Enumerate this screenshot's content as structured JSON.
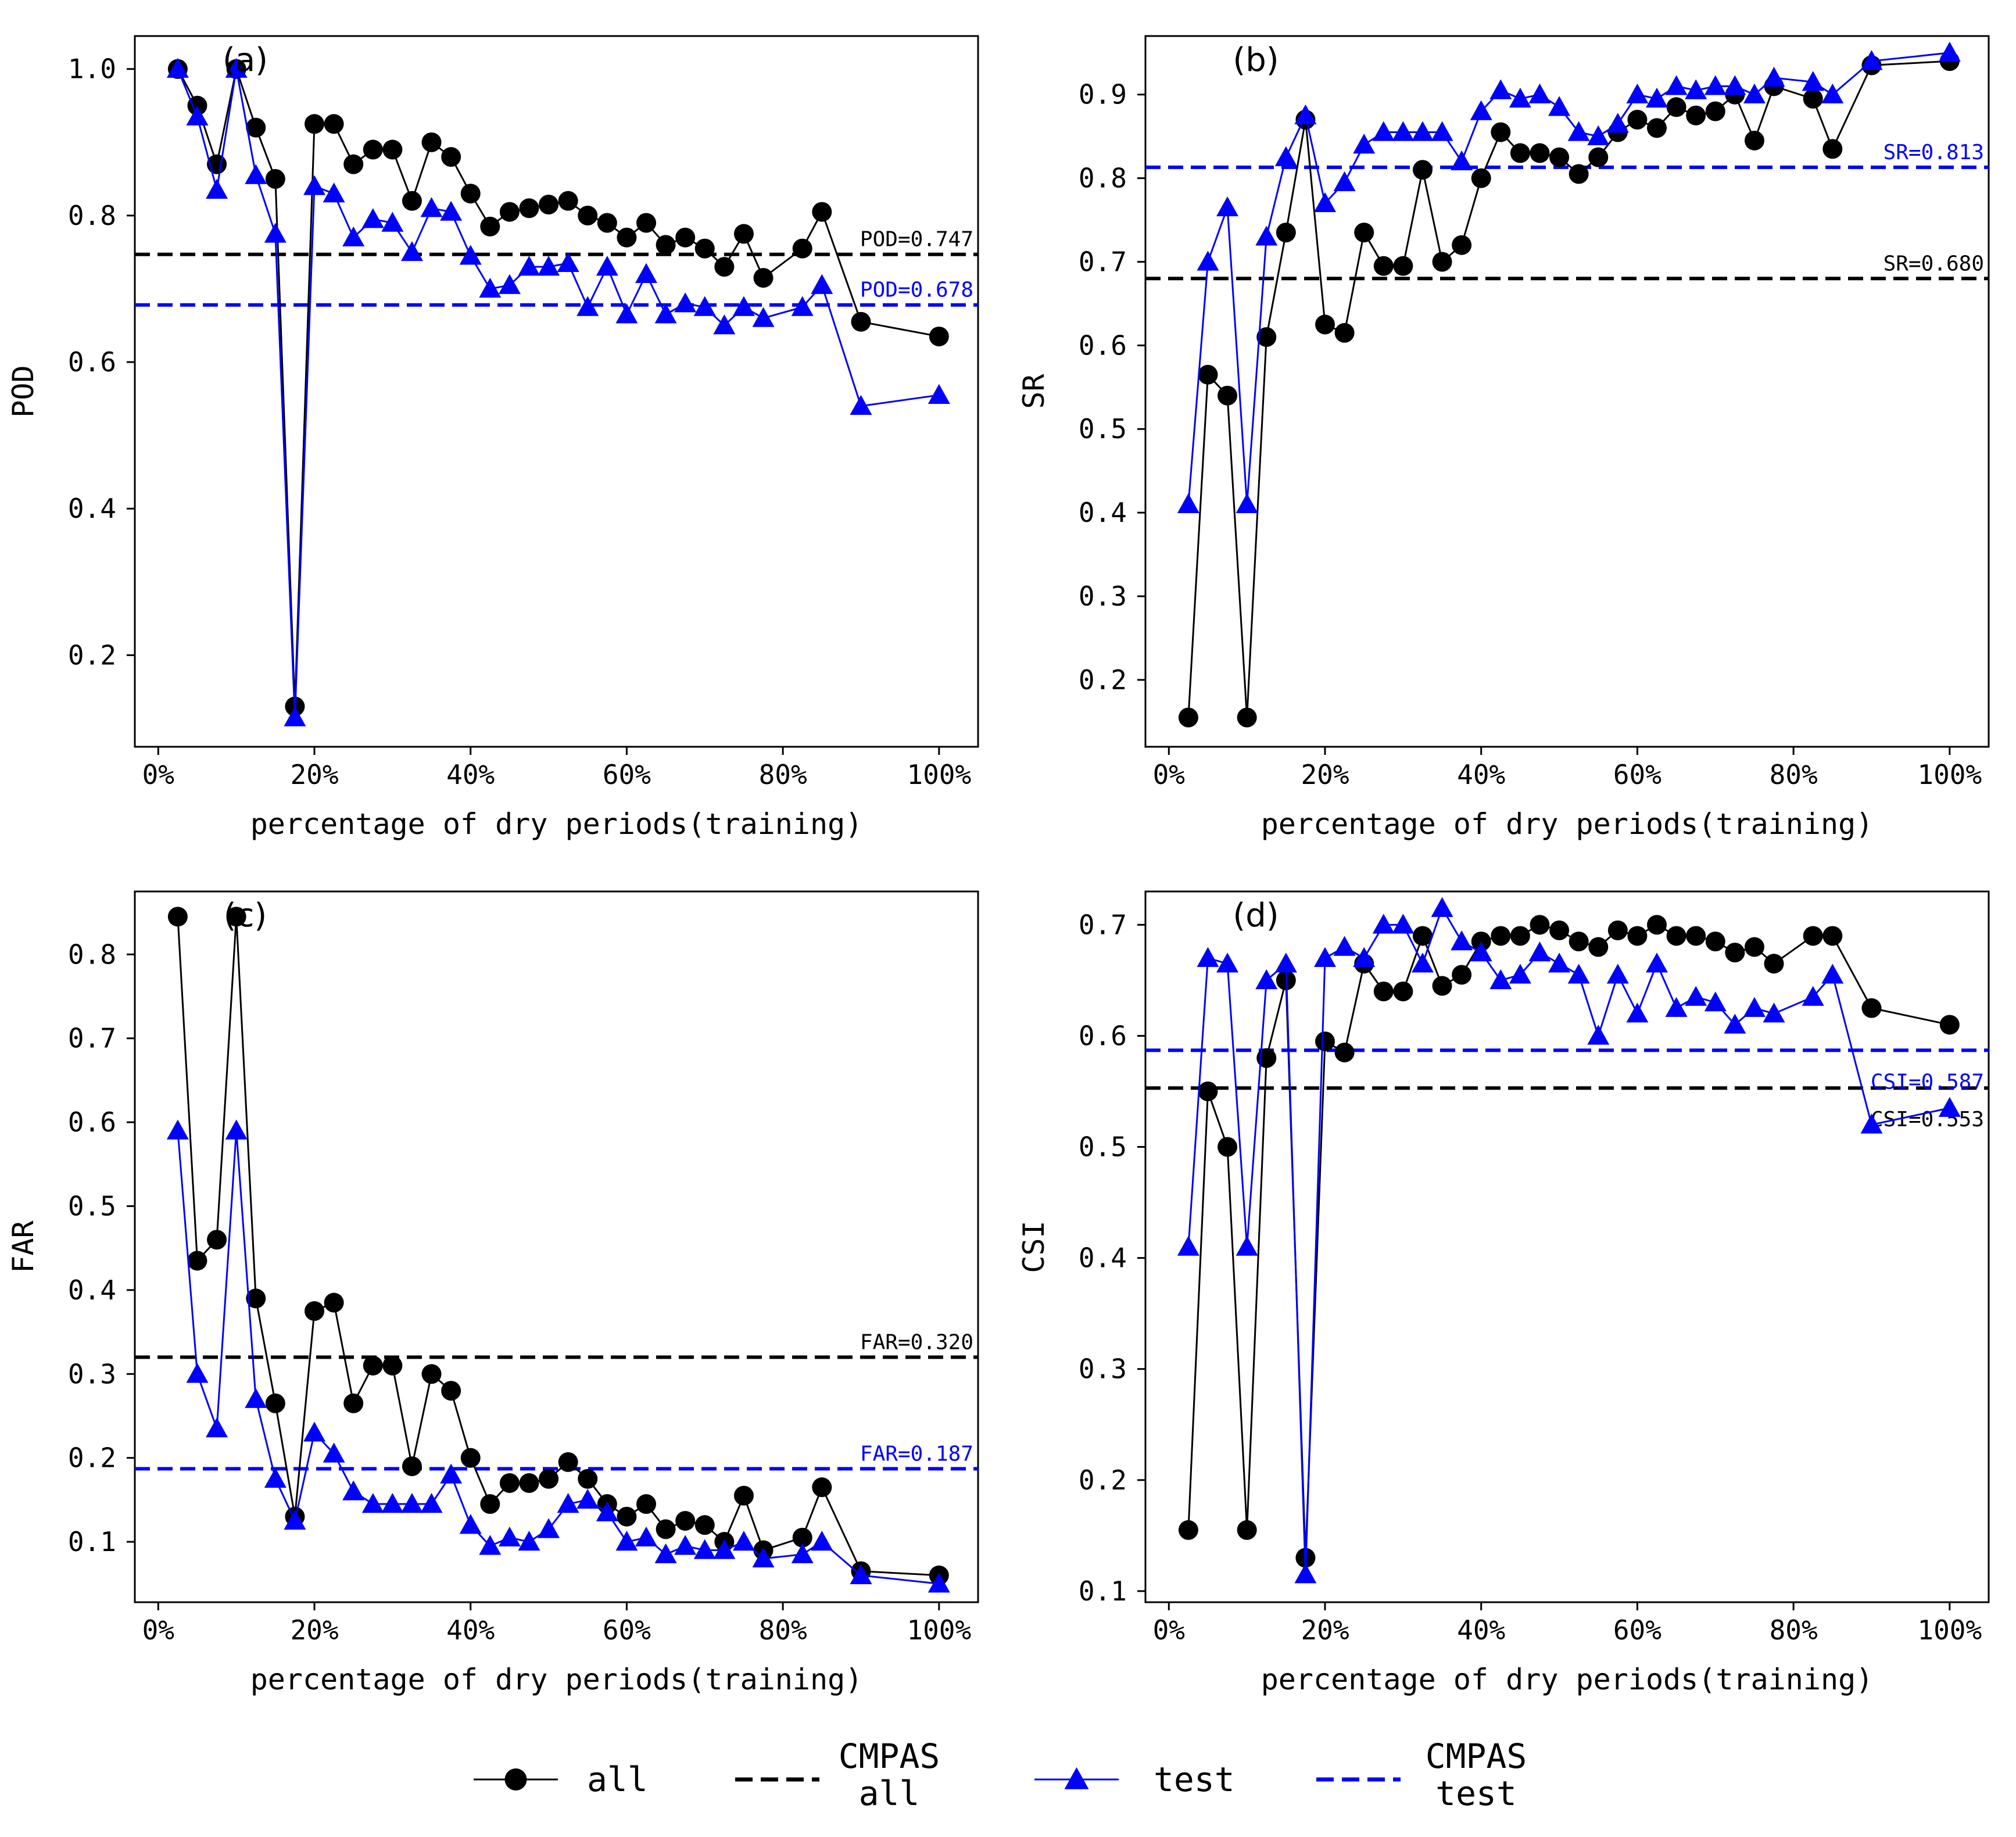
{
  "chart_data": [
    {
      "type": "line",
      "panel": "(a)",
      "xlabel": "percentage of dry periods(training)",
      "ylabel": "POD",
      "xlim": [
        -0.03,
        1.05
      ],
      "ylim": [
        0.075,
        1.045
      ],
      "xticks": [
        0,
        0.2,
        0.4,
        0.6,
        0.8,
        1.0
      ],
      "xtick_labels": [
        "0%",
        "20%",
        "40%",
        "60%",
        "80%",
        "100%"
      ],
      "yticks": [
        0.2,
        0.4,
        0.6,
        0.8,
        1.0
      ],
      "ytick_labels": [
        "0.2",
        "0.4",
        "0.6",
        "0.8",
        "1.0"
      ],
      "x": [
        0.025,
        0.05,
        0.075,
        0.1,
        0.125,
        0.15,
        0.175,
        0.2,
        0.225,
        0.25,
        0.275,
        0.3,
        0.325,
        0.35,
        0.375,
        0.4,
        0.425,
        0.45,
        0.475,
        0.5,
        0.525,
        0.55,
        0.575,
        0.6,
        0.625,
        0.65,
        0.675,
        0.7,
        0.725,
        0.75,
        0.775,
        0.825,
        0.85,
        0.9,
        1.0
      ],
      "series": [
        {
          "name": "all",
          "color": "#000000",
          "marker": "circle",
          "values": [
            1.0,
            0.95,
            0.87,
            1.0,
            0.92,
            0.85,
            0.13,
            0.925,
            0.925,
            0.87,
            0.89,
            0.89,
            0.82,
            0.9,
            0.88,
            0.83,
            0.785,
            0.805,
            0.81,
            0.815,
            0.82,
            0.8,
            0.79,
            0.77,
            0.79,
            0.76,
            0.77,
            0.755,
            0.73,
            0.775,
            0.715,
            0.755,
            0.805,
            0.655,
            0.635
          ]
        },
        {
          "name": "test",
          "color": "#0000ff",
          "marker": "triangle",
          "values": [
            1.0,
            0.935,
            0.835,
            1.0,
            0.855,
            0.775,
            0.115,
            0.84,
            0.83,
            0.77,
            0.795,
            0.79,
            0.75,
            0.81,
            0.805,
            0.745,
            0.7,
            0.705,
            0.73,
            0.73,
            0.735,
            0.675,
            0.73,
            0.665,
            0.72,
            0.665,
            0.68,
            0.675,
            0.65,
            0.675,
            0.66,
            0.675,
            0.705,
            0.54,
            0.555
          ]
        }
      ],
      "reference_lines": [
        {
          "name": "CMPAS all",
          "value": 0.747,
          "label": "POD=0.747",
          "color": "#000000",
          "label_pos": "above"
        },
        {
          "name": "CMPAS test",
          "value": 0.678,
          "label": "POD=0.678",
          "color": "#0000ff",
          "label_pos": "above"
        }
      ]
    },
    {
      "type": "line",
      "panel": "(b)",
      "xlabel": "percentage of dry periods(training)",
      "ylabel": "SR",
      "xlim": [
        -0.03,
        1.05
      ],
      "ylim": [
        0.12,
        0.97
      ],
      "xticks": [
        0,
        0.2,
        0.4,
        0.6,
        0.8,
        1.0
      ],
      "xtick_labels": [
        "0%",
        "20%",
        "40%",
        "60%",
        "80%",
        "100%"
      ],
      "yticks": [
        0.2,
        0.3,
        0.4,
        0.5,
        0.6,
        0.7,
        0.8,
        0.9
      ],
      "ytick_labels": [
        "0.2",
        "0.3",
        "0.4",
        "0.5",
        "0.6",
        "0.7",
        "0.8",
        "0.9"
      ],
      "x": [
        0.025,
        0.05,
        0.075,
        0.1,
        0.125,
        0.15,
        0.175,
        0.2,
        0.225,
        0.25,
        0.275,
        0.3,
        0.325,
        0.35,
        0.375,
        0.4,
        0.425,
        0.45,
        0.475,
        0.5,
        0.525,
        0.55,
        0.575,
        0.6,
        0.625,
        0.65,
        0.675,
        0.7,
        0.725,
        0.75,
        0.775,
        0.825,
        0.85,
        0.9,
        1.0
      ],
      "series": [
        {
          "name": "all",
          "color": "#000000",
          "marker": "circle",
          "values": [
            0.155,
            0.565,
            0.54,
            0.155,
            0.61,
            0.735,
            0.87,
            0.625,
            0.615,
            0.735,
            0.695,
            0.695,
            0.81,
            0.7,
            0.72,
            0.8,
            0.855,
            0.83,
            0.83,
            0.825,
            0.805,
            0.825,
            0.855,
            0.87,
            0.86,
            0.885,
            0.875,
            0.88,
            0.9,
            0.845,
            0.91,
            0.895,
            0.835,
            0.935,
            0.94
          ]
        },
        {
          "name": "test",
          "color": "#0000ff",
          "marker": "triangle",
          "values": [
            0.41,
            0.7,
            0.765,
            0.41,
            0.73,
            0.825,
            0.875,
            0.77,
            0.795,
            0.84,
            0.855,
            0.855,
            0.855,
            0.855,
            0.82,
            0.88,
            0.905,
            0.895,
            0.9,
            0.885,
            0.855,
            0.85,
            0.865,
            0.9,
            0.895,
            0.91,
            0.905,
            0.91,
            0.91,
            0.9,
            0.92,
            0.915,
            0.9,
            0.94,
            0.95
          ]
        }
      ],
      "reference_lines": [
        {
          "name": "CMPAS all",
          "value": 0.68,
          "label": "SR=0.680",
          "color": "#000000",
          "label_pos": "above"
        },
        {
          "name": "CMPAS test",
          "value": 0.813,
          "label": "SR=0.813",
          "color": "#0000ff",
          "label_pos": "above"
        }
      ]
    },
    {
      "type": "line",
      "panel": "(c)",
      "xlabel": "percentage of dry periods(training)",
      "ylabel": "FAR",
      "xlim": [
        -0.03,
        1.05
      ],
      "ylim": [
        0.028,
        0.875
      ],
      "xticks": [
        0,
        0.2,
        0.4,
        0.6,
        0.8,
        1.0
      ],
      "xtick_labels": [
        "0%",
        "20%",
        "40%",
        "60%",
        "80%",
        "100%"
      ],
      "yticks": [
        0.1,
        0.2,
        0.3,
        0.4,
        0.5,
        0.6,
        0.7,
        0.8
      ],
      "ytick_labels": [
        "0.1",
        "0.2",
        "0.3",
        "0.4",
        "0.5",
        "0.6",
        "0.7",
        "0.8"
      ],
      "x": [
        0.025,
        0.05,
        0.075,
        0.1,
        0.125,
        0.15,
        0.175,
        0.2,
        0.225,
        0.25,
        0.275,
        0.3,
        0.325,
        0.35,
        0.375,
        0.4,
        0.425,
        0.45,
        0.475,
        0.5,
        0.525,
        0.55,
        0.575,
        0.6,
        0.625,
        0.65,
        0.675,
        0.7,
        0.725,
        0.75,
        0.775,
        0.825,
        0.85,
        0.9,
        1.0
      ],
      "series": [
        {
          "name": "all",
          "color": "#000000",
          "marker": "circle",
          "values": [
            0.845,
            0.435,
            0.46,
            0.845,
            0.39,
            0.265,
            0.13,
            0.375,
            0.385,
            0.265,
            0.31,
            0.31,
            0.19,
            0.3,
            0.28,
            0.2,
            0.145,
            0.17,
            0.17,
            0.175,
            0.195,
            0.175,
            0.145,
            0.13,
            0.145,
            0.115,
            0.125,
            0.12,
            0.1,
            0.155,
            0.09,
            0.105,
            0.165,
            0.065,
            0.06
          ]
        },
        {
          "name": "test",
          "color": "#0000ff",
          "marker": "triangle",
          "values": [
            0.59,
            0.3,
            0.235,
            0.59,
            0.27,
            0.175,
            0.125,
            0.23,
            0.205,
            0.16,
            0.145,
            0.145,
            0.145,
            0.145,
            0.18,
            0.12,
            0.095,
            0.105,
            0.1,
            0.115,
            0.145,
            0.15,
            0.135,
            0.1,
            0.105,
            0.085,
            0.095,
            0.09,
            0.09,
            0.1,
            0.08,
            0.085,
            0.1,
            0.06,
            0.05
          ]
        }
      ],
      "reference_lines": [
        {
          "name": "CMPAS all",
          "value": 0.32,
          "label": "FAR=0.320",
          "color": "#000000",
          "label_pos": "above"
        },
        {
          "name": "CMPAS test",
          "value": 0.187,
          "label": "FAR=0.187",
          "color": "#0000ff",
          "label_pos": "above"
        }
      ]
    },
    {
      "type": "line",
      "panel": "(d)",
      "xlabel": "percentage of dry periods(training)",
      "ylabel": "CSI",
      "xlim": [
        -0.03,
        1.05
      ],
      "ylim": [
        0.09,
        0.73
      ],
      "xticks": [
        0,
        0.2,
        0.4,
        0.6,
        0.8,
        1.0
      ],
      "xtick_labels": [
        "0%",
        "20%",
        "40%",
        "60%",
        "80%",
        "100%"
      ],
      "yticks": [
        0.1,
        0.2,
        0.3,
        0.4,
        0.5,
        0.6,
        0.7
      ],
      "ytick_labels": [
        "0.1",
        "0.2",
        "0.3",
        "0.4",
        "0.5",
        "0.6",
        "0.7"
      ],
      "x": [
        0.025,
        0.05,
        0.075,
        0.1,
        0.125,
        0.15,
        0.175,
        0.2,
        0.225,
        0.25,
        0.275,
        0.3,
        0.325,
        0.35,
        0.375,
        0.4,
        0.425,
        0.45,
        0.475,
        0.5,
        0.525,
        0.55,
        0.575,
        0.6,
        0.625,
        0.65,
        0.675,
        0.7,
        0.725,
        0.75,
        0.775,
        0.825,
        0.85,
        0.9,
        1.0
      ],
      "series": [
        {
          "name": "all",
          "color": "#000000",
          "marker": "circle",
          "values": [
            0.155,
            0.55,
            0.5,
            0.155,
            0.58,
            0.65,
            0.13,
            0.595,
            0.585,
            0.665,
            0.64,
            0.64,
            0.69,
            0.645,
            0.655,
            0.685,
            0.69,
            0.69,
            0.7,
            0.695,
            0.685,
            0.68,
            0.695,
            0.69,
            0.7,
            0.69,
            0.69,
            0.685,
            0.675,
            0.68,
            0.665,
            0.69,
            0.69,
            0.625,
            0.61
          ]
        },
        {
          "name": "test",
          "color": "#0000ff",
          "marker": "triangle",
          "values": [
            0.41,
            0.67,
            0.665,
            0.41,
            0.65,
            0.665,
            0.115,
            0.67,
            0.68,
            0.67,
            0.7,
            0.7,
            0.665,
            0.715,
            0.685,
            0.675,
            0.65,
            0.655,
            0.675,
            0.665,
            0.655,
            0.6,
            0.655,
            0.62,
            0.665,
            0.625,
            0.635,
            0.63,
            0.61,
            0.625,
            0.62,
            0.635,
            0.655,
            0.52,
            0.535
          ]
        }
      ],
      "reference_lines": [
        {
          "name": "CMPAS all",
          "value": 0.553,
          "label": "CSI=0.553",
          "color": "#000000",
          "label_pos": "below"
        },
        {
          "name": "CMPAS test",
          "value": 0.587,
          "label": "CSI=0.587",
          "color": "#0000ff",
          "label_pos": "below"
        }
      ]
    }
  ],
  "legend": {
    "placement": "bottom-center",
    "entries": [
      {
        "label_lines": [
          "all"
        ],
        "style": "marker-circle",
        "color": "#000000"
      },
      {
        "label_lines": [
          "CMPAS",
          "all"
        ],
        "style": "dashed",
        "color": "#000000"
      },
      {
        "label_lines": [
          "test"
        ],
        "style": "marker-triangle",
        "color": "#0000ff"
      },
      {
        "label_lines": [
          "CMPAS",
          "test"
        ],
        "style": "dashed",
        "color": "#0000ff"
      }
    ]
  }
}
